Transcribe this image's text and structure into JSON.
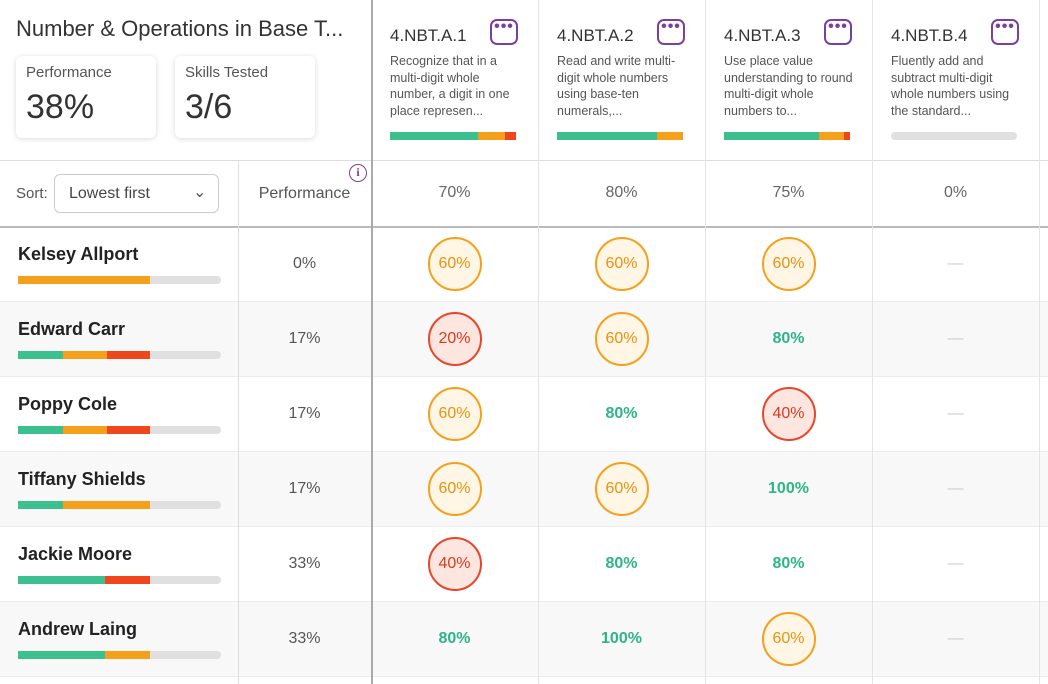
{
  "header": {
    "title": "Number & Operations in Base T...",
    "performance_label": "Performance",
    "performance_value": "38%",
    "skills_label": "Skills Tested",
    "skills_value": "3/6"
  },
  "sort": {
    "label": "Sort:",
    "selected": "Lowest first"
  },
  "performance_header": "Performance",
  "standards": [
    {
      "code": "4.NBT.A.1",
      "description": "Recognize that in a multi-digit whole number, a digit in one place represen...",
      "class_score": "70%",
      "distribution": {
        "mastered": 70,
        "partial": 21,
        "low": 9
      }
    },
    {
      "code": "4.NBT.A.2",
      "description": "Read and write multi-digit whole numbers using base-ten numerals,...",
      "class_score": "80%",
      "distribution": {
        "mastered": 79,
        "partial": 21,
        "low": 0
      }
    },
    {
      "code": "4.NBT.A.3",
      "description": "Use place value understanding to round multi-digit whole numbers to...",
      "class_score": "75%",
      "distribution": {
        "mastered": 75,
        "partial": 20,
        "low": 5
      }
    },
    {
      "code": "4.NBT.B.4",
      "description": "Fluently add and subtract multi-digit whole numbers using the standard...",
      "class_score": "0%",
      "distribution": {
        "mastered": 0,
        "partial": 0,
        "low": 0
      }
    }
  ],
  "students": [
    {
      "name": "Kelsey Allport",
      "performance": "0%",
      "distribution": {
        "mastered": 0,
        "partial": 65,
        "low": 0
      },
      "scores": [
        {
          "text": "60%",
          "level": "partial"
        },
        {
          "text": "60%",
          "level": "partial"
        },
        {
          "text": "60%",
          "level": "partial"
        },
        {
          "text": "—",
          "level": "none"
        }
      ]
    },
    {
      "name": "Edward Carr",
      "performance": "17%",
      "distribution": {
        "mastered": 22,
        "partial": 22,
        "low": 21
      },
      "scores": [
        {
          "text": "20%",
          "level": "low"
        },
        {
          "text": "60%",
          "level": "partial"
        },
        {
          "text": "80%",
          "level": "mastered"
        },
        {
          "text": "—",
          "level": "none"
        }
      ]
    },
    {
      "name": "Poppy Cole",
      "performance": "17%",
      "distribution": {
        "mastered": 22,
        "partial": 22,
        "low": 21
      },
      "scores": [
        {
          "text": "60%",
          "level": "partial"
        },
        {
          "text": "80%",
          "level": "mastered"
        },
        {
          "text": "40%",
          "level": "low"
        },
        {
          "text": "—",
          "level": "none"
        }
      ]
    },
    {
      "name": "Tiffany Shields",
      "performance": "17%",
      "distribution": {
        "mastered": 22,
        "partial": 43,
        "low": 0
      },
      "scores": [
        {
          "text": "60%",
          "level": "partial"
        },
        {
          "text": "60%",
          "level": "partial"
        },
        {
          "text": "100%",
          "level": "mastered"
        },
        {
          "text": "—",
          "level": "none"
        }
      ]
    },
    {
      "name": "Jackie Moore",
      "performance": "33%",
      "distribution": {
        "mastered": 43,
        "partial": 0,
        "low": 22
      },
      "scores": [
        {
          "text": "40%",
          "level": "low"
        },
        {
          "text": "80%",
          "level": "mastered"
        },
        {
          "text": "80%",
          "level": "mastered"
        },
        {
          "text": "—",
          "level": "none"
        }
      ]
    },
    {
      "name": "Andrew Laing",
      "performance": "33%",
      "distribution": {
        "mastered": 43,
        "partial": 22,
        "low": 0
      },
      "scores": [
        {
          "text": "80%",
          "level": "mastered"
        },
        {
          "text": "100%",
          "level": "mastered"
        },
        {
          "text": "60%",
          "level": "partial"
        },
        {
          "text": "—",
          "level": "none"
        }
      ]
    }
  ]
}
